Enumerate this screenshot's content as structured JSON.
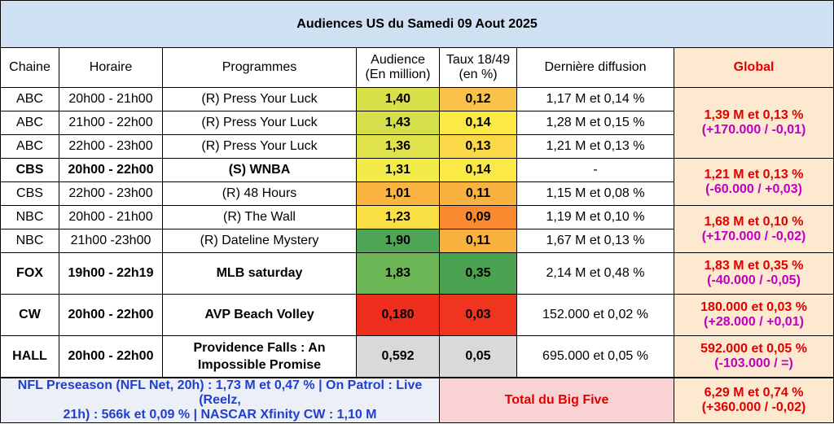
{
  "title": "Audiences US du Samedi 09 Aout 2025",
  "headers": {
    "chaine": "Chaine",
    "horaire": "Horaire",
    "programmes": "Programmes",
    "audience_l1": "Audience",
    "audience_l2": "(En million)",
    "taux_l1": "Taux 18/49",
    "taux_l2": "(en %)",
    "derniere": "Dernière diffusion",
    "global": "Global"
  },
  "rows": [
    {
      "chaine": "ABC",
      "horaire": "20h00 - 21h00",
      "programme": "(R) Press Your Luck",
      "audience": "1,40",
      "taux": "0,12",
      "derniere": "1,17 M et 0,14 %",
      "aud_color": "#d8e04a",
      "taux_color": "#f9c24a",
      "bold": false
    },
    {
      "chaine": "ABC",
      "horaire": "21h00 - 22h00",
      "programme": "(R) Press Your Luck",
      "audience": "1,43",
      "taux": "0,14",
      "derniere": "1,28 M et 0,15 %",
      "aud_color": "#d5df4a",
      "taux_color": "#fbea45",
      "bold": false
    },
    {
      "chaine": "ABC",
      "horaire": "22h00 - 23h00",
      "programme": "(R) Press Your Luck",
      "audience": "1,36",
      "taux": "0,13",
      "derniere": "1,21 M et 0,13 %",
      "aud_color": "#dfe24b",
      "taux_color": "#fbd848",
      "bold": false
    },
    {
      "chaine": "CBS",
      "horaire": "20h00 - 22h00",
      "programme": "(S) WNBA",
      "audience": "1,31",
      "taux": "0,14",
      "derniere": "-",
      "aud_color": "#f3ec48",
      "taux_color": "#fbea45",
      "bold": true
    },
    {
      "chaine": "CBS",
      "horaire": "22h00 - 23h00",
      "programme": "(R) 48 Hours",
      "audience": "1,01",
      "taux": "0,11",
      "derniere": "1,15 M et 0,08 %",
      "aud_color": "#f9b53f",
      "taux_color": "#f9b23f",
      "bold": false
    },
    {
      "chaine": "NBC",
      "horaire": "20h00 - 21h00",
      "programme": "(R) The Wall",
      "audience": "1,23",
      "taux": "0,09",
      "derniere": "1,19 M et 0,10 %",
      "aud_color": "#fbe045",
      "taux_color": "#f98a2f",
      "bold": false
    },
    {
      "chaine": "NBC",
      "horaire": "21h00 -23h00",
      "programme": "(R) Dateline Mystery",
      "audience": "1,90",
      "taux": "0,11",
      "derniere": "1,67 M et 0,13 %",
      "aud_color": "#4fa556",
      "taux_color": "#f9b23f",
      "bold": false
    },
    {
      "chaine": "FOX",
      "horaire": "19h00 - 22h19",
      "programme": "MLB saturday",
      "audience": "1,83",
      "taux": "0,35",
      "derniere": "2,14 M et 0,48 %",
      "aud_color": "#6cb656",
      "taux_color": "#4aa14f",
      "bold": true
    },
    {
      "chaine": "CW",
      "horaire": "20h00 - 22h00",
      "programme": "AVP Beach Volley",
      "audience": "0,180",
      "taux": "0,03",
      "derniere": "152.000 et 0,02 %",
      "aud_color": "#ee2e1c",
      "taux_color": "#ef3520",
      "bold": true
    },
    {
      "chaine": "HALL",
      "horaire": "20h00 - 22h00",
      "programme_l1": "Providence Falls : An",
      "programme_l2": "Impossible Promise",
      "audience": "0,592",
      "taux": "0,05",
      "derniere": "695.000 et 0,05 %",
      "aud_color": "#d9d9d9",
      "taux_color": "#d9d9d9",
      "bold": true
    }
  ],
  "global": [
    {
      "main": "1,39 M et 0,13 %",
      "sub": "(+170.000 / -0,01)"
    },
    {
      "main": "1,21 M et 0,13 %",
      "sub": "(-60.000 / +0,03)"
    },
    {
      "main": "1,68 M et 0,10 %",
      "sub": "(+170.000 / -0,02)"
    },
    {
      "main": "1,83 M et 0,35 %",
      "sub": "(-40.000 / -0,05)"
    },
    {
      "main": "180.000 et 0,03 %",
      "sub": "(+28.000 / +0,01)"
    },
    {
      "main": "592.000 et 0,05 %",
      "sub": "(-103.000 / =)"
    }
  ],
  "footer": {
    "left_l1": "NFL Preseason (NFL Net, 20h) : 1,73 M et 0,47 % | On Patrol : Live (Reelz,",
    "left_l2": "21h) : 566k et 0,09 % | NASCAR Xfinity CW : 1,10 M",
    "mid": "Total du Big Five",
    "right_main": "6,29 M et 0,74 %",
    "right_sub": "(+360.000 / -0,02)"
  }
}
